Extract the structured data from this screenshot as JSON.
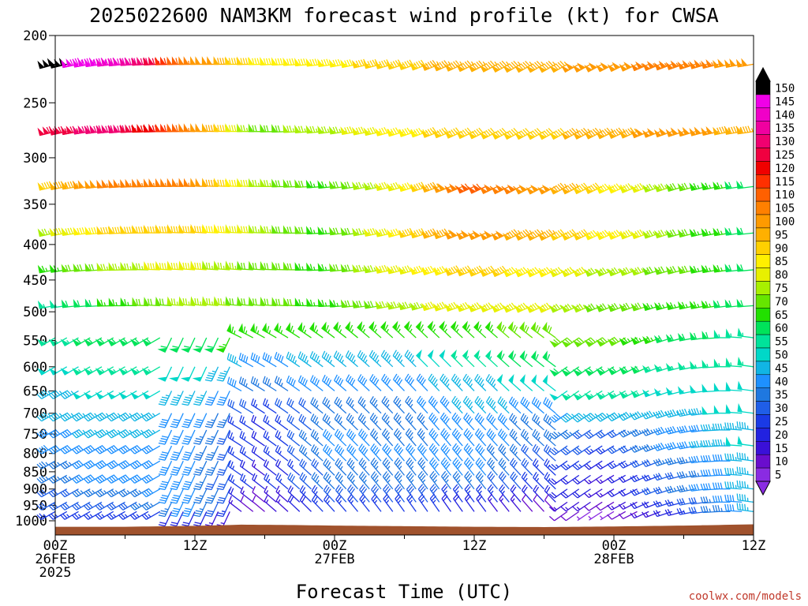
{
  "chart_data": {
    "type": "wind-barb",
    "title": "2025022600 NAM3KM forecast wind profile (kt) for CWSA",
    "xlabel": "Forecast Time (UTC)",
    "ylabel": "",
    "credit": "coolwx.com/models",
    "x_axis": {
      "unit": "forecast hour",
      "range": [
        0,
        60
      ],
      "step_hours": 1,
      "ticks": [
        {
          "hour": 0,
          "line1": "00Z",
          "line2": "26FEB",
          "line3": "2025"
        },
        {
          "hour": 12,
          "line1": "12Z",
          "line2": "",
          "line3": ""
        },
        {
          "hour": 24,
          "line1": "00Z",
          "line2": "27FEB",
          "line3": ""
        },
        {
          "hour": 36,
          "line1": "12Z",
          "line2": "",
          "line3": ""
        },
        {
          "hour": 48,
          "line1": "00Z",
          "line2": "28FEB",
          "line3": ""
        },
        {
          "hour": 60,
          "line1": "12Z",
          "line2": "",
          "line3": ""
        }
      ]
    },
    "y_axis": {
      "unit": "hPa",
      "scale": "log",
      "inverted": true,
      "range": [
        200,
        1000
      ],
      "ticks": [
        200,
        250,
        300,
        350,
        400,
        450,
        500,
        550,
        600,
        650,
        700,
        750,
        800,
        850,
        900,
        950,
        1000
      ]
    },
    "wind_levels_hpa": [
      220,
      275,
      330,
      385,
      435,
      490,
      545,
      600,
      650,
      700,
      740,
      780,
      820,
      860,
      900,
      940,
      970
    ],
    "wind_speed_kt_anchors": {
      "hours": [
        0,
        6,
        12,
        18,
        24,
        30,
        36,
        42,
        48,
        54,
        60
      ],
      "220": [
        150,
        140,
        105,
        85,
        85,
        90,
        95,
        95,
        100,
        105,
        100
      ],
      "275": [
        125,
        130,
        105,
        70,
        75,
        85,
        90,
        90,
        95,
        100,
        95
      ],
      "330": [
        90,
        105,
        105,
        75,
        65,
        80,
        110,
        100,
        85,
        70,
        60
      ],
      "385": [
        75,
        90,
        90,
        75,
        65,
        85,
        100,
        95,
        85,
        70,
        60
      ],
      "435": [
        65,
        75,
        80,
        70,
        65,
        80,
        90,
        85,
        75,
        70,
        60
      ],
      "490": [
        55,
        65,
        75,
        70,
        65,
        75,
        80,
        80,
        70,
        65,
        60
      ],
      "545": [
        55,
        60,
        60,
        65,
        65,
        65,
        65,
        70,
        70,
        60,
        55
      ],
      "600": [
        50,
        55,
        50,
        40,
        45,
        45,
        55,
        60,
        60,
        55,
        55
      ],
      "650": [
        45,
        50,
        45,
        35,
        40,
        40,
        45,
        50,
        55,
        50,
        50
      ],
      "700": [
        45,
        45,
        40,
        25,
        35,
        35,
        45,
        40,
        45,
        45,
        50
      ],
      "740": [
        40,
        45,
        40,
        20,
        35,
        35,
        40,
        35,
        30,
        40,
        45
      ],
      "780": [
        40,
        40,
        40,
        20,
        40,
        35,
        40,
        35,
        25,
        40,
        50
      ],
      "820": [
        35,
        40,
        40,
        20,
        40,
        40,
        40,
        30,
        20,
        35,
        45
      ],
      "860": [
        35,
        40,
        40,
        15,
        35,
        35,
        40,
        25,
        15,
        30,
        45
      ],
      "900": [
        30,
        35,
        40,
        20,
        35,
        35,
        35,
        25,
        15,
        35,
        45
      ],
      "940": [
        30,
        30,
        40,
        10,
        30,
        30,
        25,
        20,
        10,
        25,
        45
      ],
      "970": [
        25,
        25,
        20,
        10,
        25,
        25,
        20,
        10,
        5,
        20,
        45
      ]
    },
    "terrain_pressure_hpa": {
      "hours": [
        0,
        6,
        12,
        14,
        16,
        20,
        24,
        30,
        36,
        42,
        48,
        54,
        60
      ],
      "values": [
        1020,
        1020,
        1017,
        1015,
        1013,
        1014,
        1016,
        1018,
        1020,
        1021,
        1019,
        1016,
        1012
      ]
    },
    "colorbar": {
      "values": [
        5,
        10,
        15,
        20,
        25,
        30,
        35,
        40,
        45,
        50,
        55,
        60,
        65,
        70,
        75,
        80,
        85,
        90,
        95,
        100,
        105,
        110,
        115,
        120,
        125,
        130,
        135,
        140,
        145,
        150
      ],
      "colors": [
        "#8a2be2",
        "#6a0dcd",
        "#3a10d8",
        "#2222e0",
        "#1a3ae6",
        "#1f5ee8",
        "#1f78e0",
        "#1e90ff",
        "#11b5e4",
        "#00d8c8",
        "#00e39a",
        "#00e35a",
        "#22e000",
        "#66e600",
        "#a8f000",
        "#e8f000",
        "#fff000",
        "#ffd000",
        "#ffb000",
        "#ff9a00",
        "#ff8000",
        "#ff6000",
        "#ff3000",
        "#f00000",
        "#f00040",
        "#f00070",
        "#f000a0",
        "#f000c8",
        "#f000e8",
        "#000000"
      ]
    },
    "colors": {
      "terrain": "#a0522d",
      "axis": "#000000"
    }
  }
}
